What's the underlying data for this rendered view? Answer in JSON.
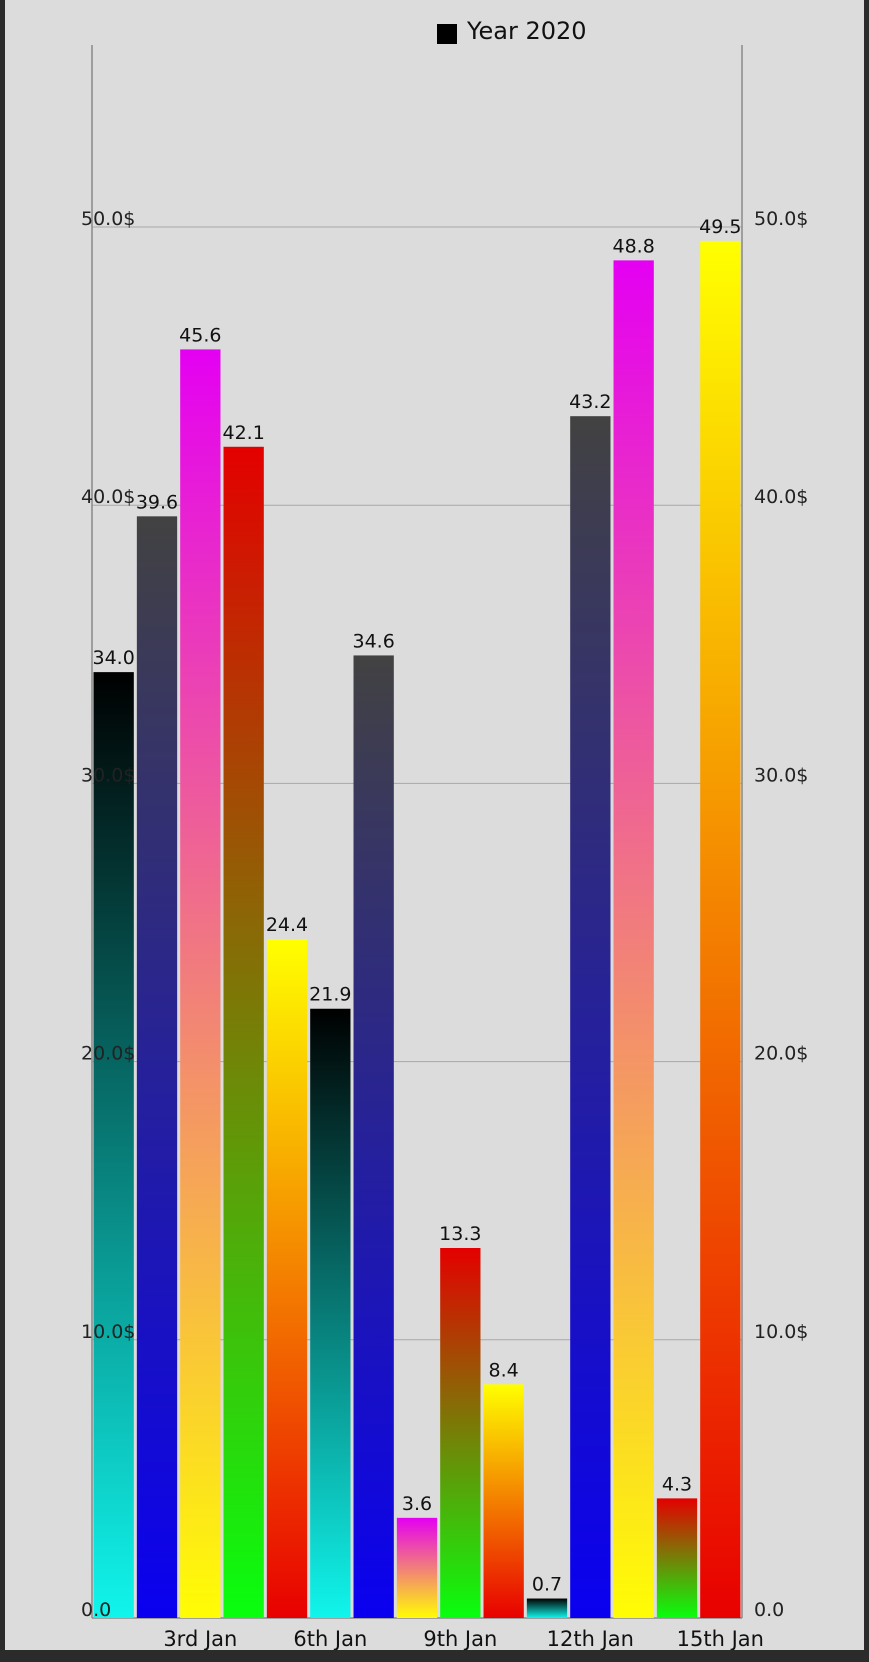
{
  "chart_data": {
    "type": "bar",
    "legend": {
      "label": "Year 2020",
      "color": "#000000",
      "position": "top-center"
    },
    "ylim": [
      0,
      58
    ],
    "y_ticks": [
      0,
      10,
      20,
      30,
      40,
      50
    ],
    "y_tick_labels_left": [
      "0.0",
      "10.0$",
      "20.0$",
      "30.0$",
      "40.0$",
      "50.0$"
    ],
    "y_tick_labels_right": [
      "0.0",
      "10.0$",
      "20.0$",
      "30.0$",
      "40.0$",
      "50.0$"
    ],
    "grid": true,
    "x_tick_labels": [
      {
        "label": "3rd Jan",
        "index": 2
      },
      {
        "label": "6th Jan",
        "index": 5
      },
      {
        "label": "9th Jan",
        "index": 8
      },
      {
        "label": "12th Jan",
        "index": 11
      },
      {
        "label": "15th Jan",
        "index": 14
      }
    ],
    "series": [
      {
        "values": [
          34.0,
          39.6,
          45.6,
          42.1,
          24.4,
          21.9,
          34.6,
          3.6,
          13.3,
          8.4,
          0.7,
          43.2,
          48.8,
          4.3,
          49.5
        ],
        "value_labels": [
          "34.0",
          "39.6",
          "45.6",
          "42.1",
          "24.4",
          "21.9",
          "34.6",
          "3.6",
          "13.3",
          "8.4",
          "0.7",
          "43.2",
          "48.8",
          "4.3",
          "49.5"
        ]
      }
    ],
    "bar_gradients": [
      {
        "top": "#000000",
        "bottom": "#10f5ec"
      },
      {
        "top": "#424242",
        "bottom": "#0a00f0"
      },
      {
        "top": "#e400f2",
        "bottom": "#fffd04"
      },
      {
        "top": "#e40000",
        "bottom": "#08ff0e"
      },
      {
        "top": "#ffff00",
        "bottom": "#e80000"
      },
      {
        "top": "#000000",
        "bottom": "#10f5ec"
      },
      {
        "top": "#424242",
        "bottom": "#0a00f0"
      },
      {
        "top": "#e400f2",
        "bottom": "#fffd04"
      },
      {
        "top": "#e40000",
        "bottom": "#08ff0e"
      },
      {
        "top": "#ffff00",
        "bottom": "#e80000"
      },
      {
        "top": "#000000",
        "bottom": "#10f5ec"
      },
      {
        "top": "#424242",
        "bottom": "#0a00f0"
      },
      {
        "top": "#e400f2",
        "bottom": "#fffd04"
      },
      {
        "top": "#e40000",
        "bottom": "#08ff0e"
      },
      {
        "top": "#ffff00",
        "bottom": "#e80000"
      }
    ]
  }
}
